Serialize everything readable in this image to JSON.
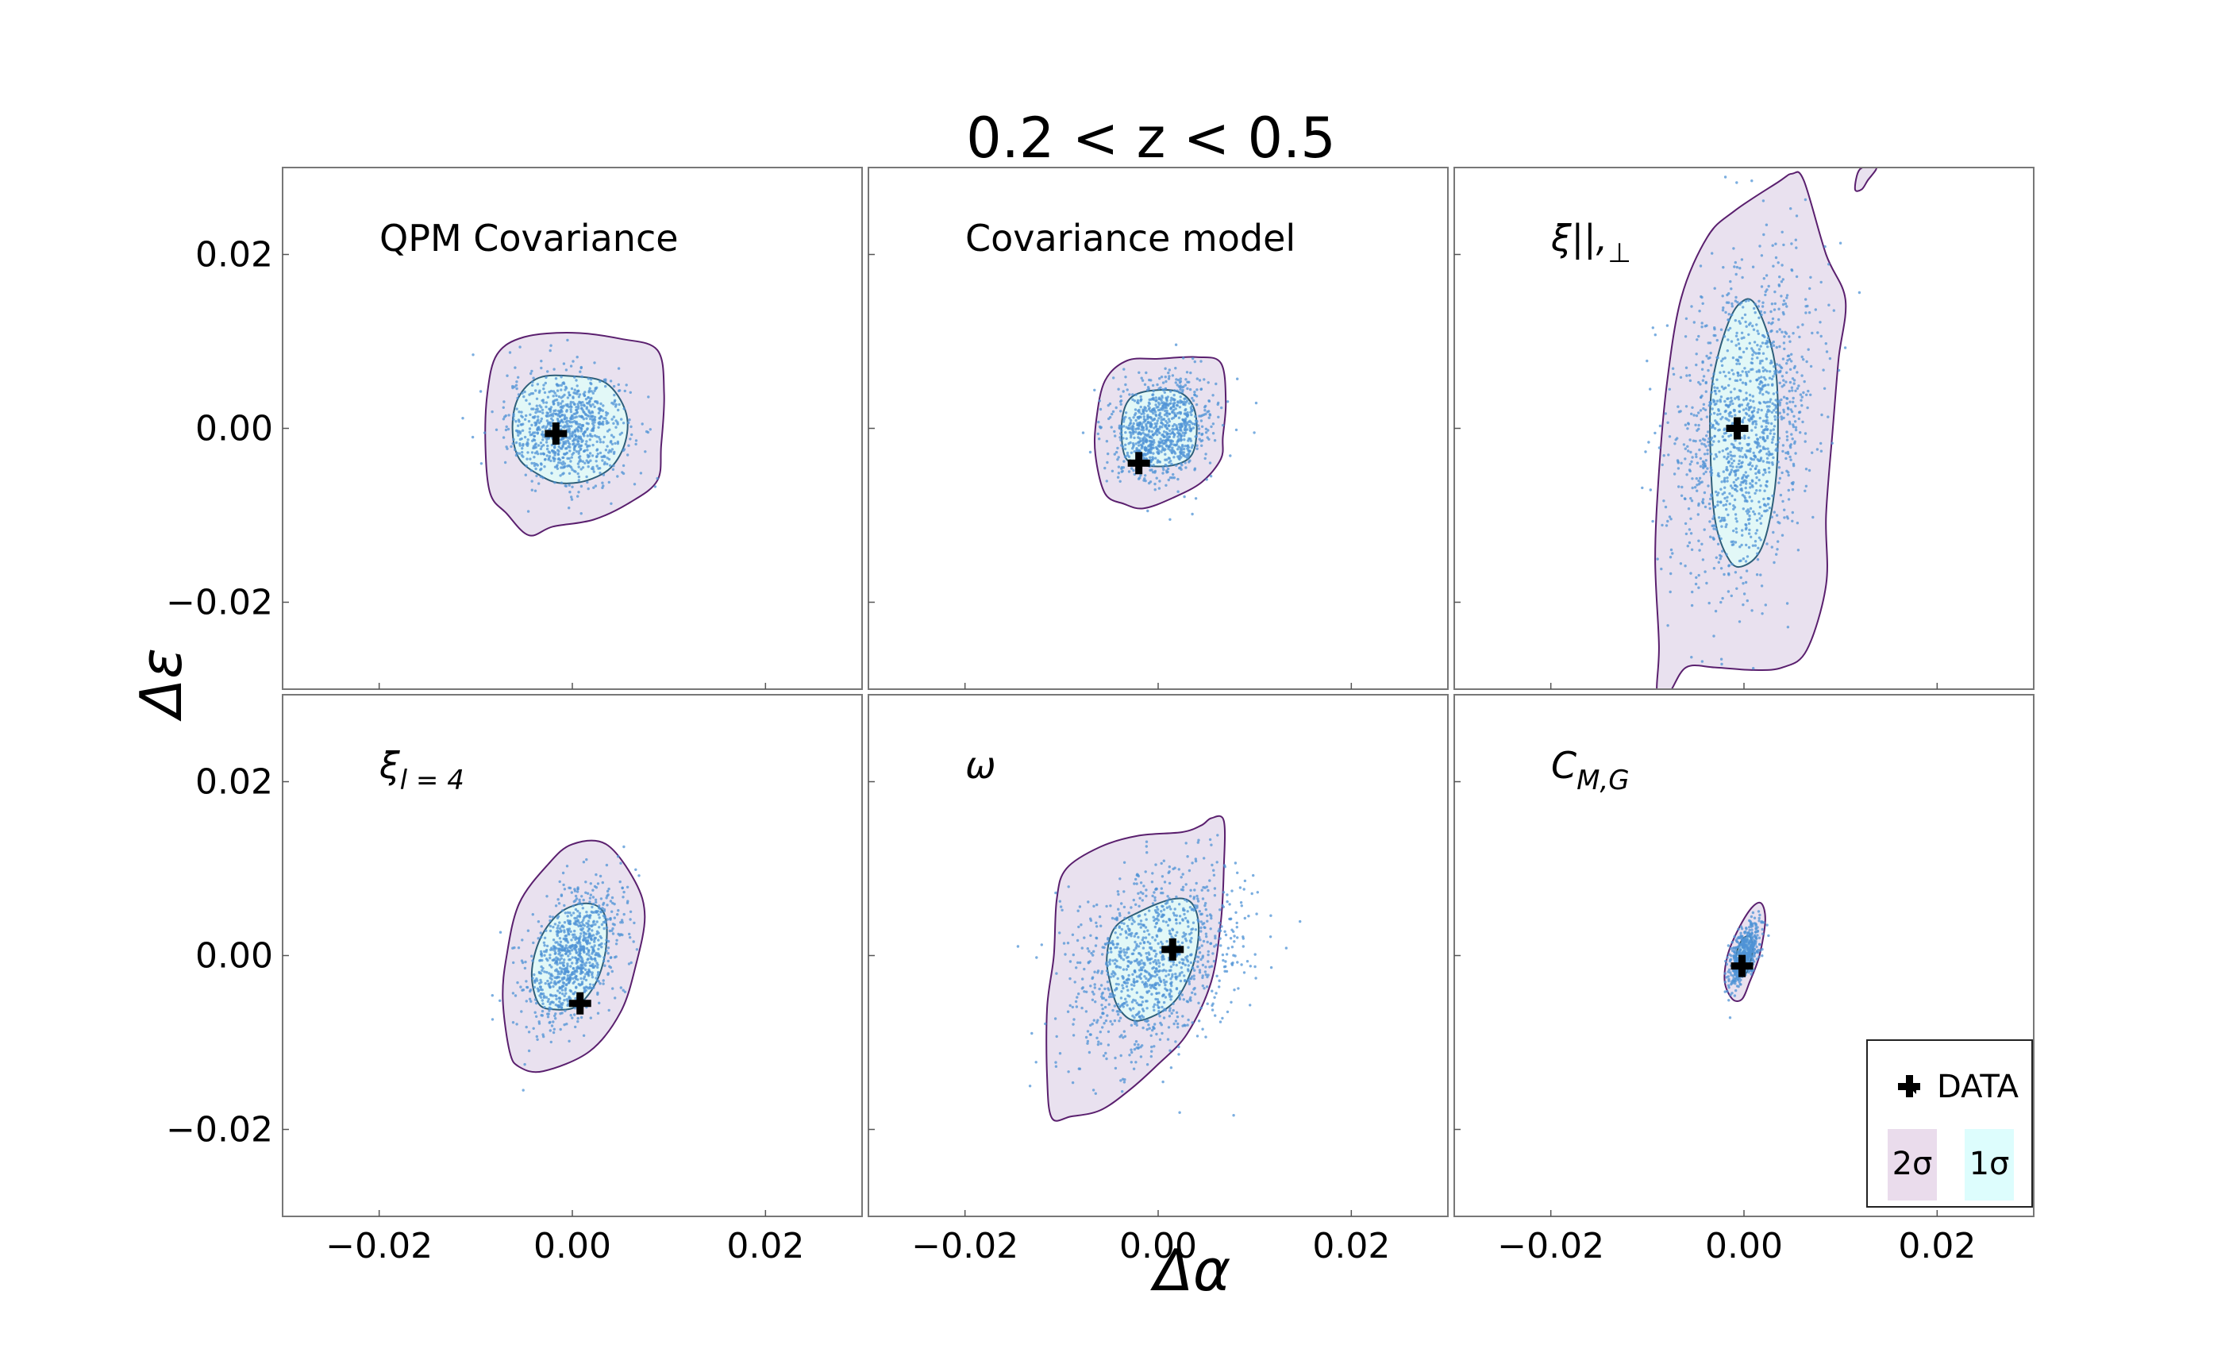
{
  "figure": {
    "title": "0.2 < z < 0.5",
    "xlabel": "Δα",
    "ylabel": "Δε",
    "legend": {
      "position": "bottom-right",
      "data_label": "DATA",
      "two_sigma_label": "2σ",
      "one_sigma_label": "1σ"
    },
    "colors": {
      "two_sigma_fill": "#e9e1ef",
      "two_sigma_line": "#5a1f6e",
      "one_sigma_fill": "#e2f8f7",
      "one_sigma_line": "#2e5f7a",
      "points": "#4f93d6",
      "marker": "#000000",
      "legend_two_sigma": "#eadcec",
      "legend_one_sigma": "#ddfdfd"
    }
  },
  "chart_data": [
    {
      "type": "scatter",
      "title": "QPM Covariance",
      "xlim": [
        -0.03,
        0.03
      ],
      "ylim": [
        -0.03,
        0.03
      ],
      "xticks": [
        -0.02,
        0.0,
        0.02
      ],
      "yticks": [
        -0.02,
        0.0,
        0.02
      ],
      "xtick_labels": [
        "−0.02",
        "0.00",
        "0.02"
      ],
      "ytick_labels": [
        "−0.02",
        "0.00",
        "0.02"
      ],
      "data_point": [
        -0.0017,
        -0.0006
      ],
      "cloud": {
        "center": [
          -0.0005,
          0.0
        ],
        "sigma": [
          0.0031,
          0.0032
        ],
        "rho": 0.0,
        "n": 900
      },
      "contour_2sigma": [
        [
          -0.0085,
          -0.0075
        ],
        [
          -0.009,
          -0.002
        ],
        [
          -0.0088,
          0.004
        ],
        [
          -0.0078,
          0.0085
        ],
        [
          -0.005,
          0.0105
        ],
        [
          0.0,
          0.011
        ],
        [
          0.005,
          0.0103
        ],
        [
          0.0088,
          0.009
        ],
        [
          0.0095,
          0.004
        ],
        [
          0.0092,
          -0.002
        ],
        [
          0.0088,
          -0.006
        ],
        [
          0.006,
          -0.0085
        ],
        [
          0.0022,
          -0.0105
        ],
        [
          -0.002,
          -0.0113
        ],
        [
          -0.0045,
          -0.0123
        ],
        [
          -0.0068,
          -0.0098
        ]
      ],
      "contour_1sigma": [
        [
          -0.0032,
          -0.0055
        ],
        [
          -0.0055,
          -0.0035
        ],
        [
          -0.0062,
          0.0
        ],
        [
          -0.0056,
          0.0035
        ],
        [
          -0.0035,
          0.0058
        ],
        [
          0.0,
          0.006
        ],
        [
          0.0035,
          0.0052
        ],
        [
          0.0055,
          0.002
        ],
        [
          0.0055,
          -0.0015
        ],
        [
          0.004,
          -0.0045
        ],
        [
          0.0015,
          -0.006
        ],
        [
          -0.0012,
          -0.0063
        ]
      ]
    },
    {
      "type": "scatter",
      "title": "Covariance model",
      "xlim": [
        -0.03,
        0.03
      ],
      "ylim": [
        -0.03,
        0.03
      ],
      "xticks": [
        -0.02,
        0.0,
        0.02
      ],
      "yticks": [
        -0.02,
        0.0,
        0.02
      ],
      "xtick_labels": [
        "−0.02",
        "0.00",
        "0.02"
      ],
      "ytick_labels": [
        "−0.02",
        "0.00",
        "0.02"
      ],
      "data_point": [
        -0.002,
        -0.004
      ],
      "cloud": {
        "center": [
          0.0003,
          0.0
        ],
        "sigma": [
          0.0026,
          0.0029
        ],
        "rho": 0.1,
        "n": 900
      },
      "contour_2sigma": [
        [
          -0.0055,
          -0.0075
        ],
        [
          -0.0065,
          -0.003
        ],
        [
          -0.0064,
          0.001
        ],
        [
          -0.0055,
          0.0055
        ],
        [
          -0.0032,
          0.0078
        ],
        [
          0.0,
          0.008
        ],
        [
          0.004,
          0.0082
        ],
        [
          0.0065,
          0.0075
        ],
        [
          0.007,
          0.003
        ],
        [
          0.0067,
          -0.001
        ],
        [
          0.0065,
          -0.0035
        ],
        [
          0.0045,
          -0.0062
        ],
        [
          0.0015,
          -0.008
        ],
        [
          -0.0015,
          -0.0092
        ],
        [
          -0.0035,
          -0.0087
        ]
      ],
      "contour_1sigma": [
        [
          -0.0033,
          -0.0035
        ],
        [
          -0.0038,
          0.0
        ],
        [
          -0.0032,
          0.003
        ],
        [
          -0.0015,
          0.0042
        ],
        [
          0.0018,
          0.0043
        ],
        [
          0.0035,
          0.0028
        ],
        [
          0.004,
          0.0
        ],
        [
          0.0035,
          -0.003
        ],
        [
          0.0017,
          -0.0042
        ],
        [
          -0.0012,
          -0.0043
        ]
      ]
    },
    {
      "type": "scatter",
      "title": "ξ||, ⊥",
      "xlim": [
        -0.03,
        0.03
      ],
      "ylim": [
        -0.03,
        0.03
      ],
      "xticks": [
        -0.02,
        0.0,
        0.02
      ],
      "yticks": [
        -0.02,
        0.0,
        0.02
      ],
      "xtick_labels": [
        "−0.02",
        "0.00",
        "0.02"
      ],
      "ytick_labels": [
        "−0.02",
        "0.00",
        "0.02"
      ],
      "data_point": [
        -0.0007,
        0.0
      ],
      "cloud": {
        "center": [
          0.0,
          0.0
        ],
        "sigma": [
          0.0036,
          0.0092
        ],
        "rho": 0.3,
        "n": 1300
      },
      "contour_2sigma": [
        [
          -0.009,
          -0.0305
        ],
        [
          -0.0088,
          -0.025
        ],
        [
          -0.0092,
          -0.015
        ],
        [
          -0.0088,
          -0.005
        ],
        [
          -0.008,
          0.005
        ],
        [
          -0.0065,
          0.015
        ],
        [
          -0.0038,
          0.022
        ],
        [
          -0.001,
          0.025
        ],
        [
          0.0035,
          0.0283
        ],
        [
          0.005,
          0.0293
        ],
        [
          0.0062,
          0.0285
        ],
        [
          0.0085,
          0.02
        ],
        [
          0.0105,
          0.0148
        ],
        [
          0.0098,
          0.008
        ],
        [
          0.0092,
          0.0
        ],
        [
          0.0085,
          -0.01
        ],
        [
          0.0085,
          -0.018
        ],
        [
          0.0065,
          -0.0255
        ],
        [
          0.004,
          -0.0275
        ],
        [
          0.001,
          -0.0278
        ],
        [
          -0.003,
          -0.0275
        ],
        [
          -0.006,
          -0.0275
        ],
        [
          -0.0078,
          -0.0305
        ]
      ],
      "contour_1sigma": [
        [
          -0.0035,
          -0.0015
        ],
        [
          -0.0033,
          0.005
        ],
        [
          -0.002,
          0.011
        ],
        [
          -0.0005,
          0.0143
        ],
        [
          0.0012,
          0.0142
        ],
        [
          0.0032,
          0.0075
        ],
        [
          0.0035,
          -0.002
        ],
        [
          0.003,
          -0.0085
        ],
        [
          0.0018,
          -0.0138
        ],
        [
          0.0,
          -0.0158
        ],
        [
          -0.0015,
          -0.0152
        ],
        [
          -0.003,
          -0.0105
        ]
      ],
      "extra_contour": [
        [
          0.0115,
          0.0275
        ],
        [
          0.012,
          0.0298
        ],
        [
          0.0137,
          0.03
        ],
        [
          0.0128,
          0.0285
        ],
        [
          0.0122,
          0.0275
        ]
      ]
    },
    {
      "type": "scatter",
      "title": "ξ l = 4",
      "xlim": [
        -0.03,
        0.03
      ],
      "ylim": [
        -0.03,
        0.03
      ],
      "xticks": [
        -0.02,
        0.0,
        0.02
      ],
      "yticks": [
        -0.02,
        0.0,
        0.02
      ],
      "xtick_labels": [
        "−0.02",
        "0.00",
        "0.02"
      ],
      "ytick_labels": [
        "−0.02",
        "0.00",
        "0.02"
      ],
      "data_point": [
        0.0008,
        -0.0055
      ],
      "cloud": {
        "center": [
          0.0,
          0.0
        ],
        "sigma": [
          0.0026,
          0.0042
        ],
        "rho": 0.45,
        "n": 900
      },
      "contour_2sigma": [
        [
          -0.0065,
          -0.011
        ],
        [
          -0.0072,
          -0.005
        ],
        [
          -0.0068,
          0.0
        ],
        [
          -0.0055,
          0.006
        ],
        [
          -0.0025,
          0.0105
        ],
        [
          0.0,
          0.0128
        ],
        [
          0.0035,
          0.0128
        ],
        [
          0.0065,
          0.0085
        ],
        [
          0.0075,
          0.0045
        ],
        [
          0.0066,
          -0.001
        ],
        [
          0.005,
          -0.0065
        ],
        [
          0.0018,
          -0.011
        ],
        [
          -0.003,
          -0.0133
        ],
        [
          -0.0055,
          -0.0128
        ]
      ],
      "contour_1sigma": [
        [
          -0.0035,
          -0.0055
        ],
        [
          -0.0042,
          -0.002
        ],
        [
          -0.0033,
          0.002
        ],
        [
          -0.0012,
          0.005
        ],
        [
          0.0015,
          0.006
        ],
        [
          0.0033,
          0.0048
        ],
        [
          0.0035,
          0.001
        ],
        [
          0.0025,
          -0.003
        ],
        [
          0.0005,
          -0.0058
        ],
        [
          -0.0018,
          -0.0062
        ]
      ]
    },
    {
      "type": "scatter",
      "title": "ω",
      "xlim": [
        -0.03,
        0.03
      ],
      "ylim": [
        -0.03,
        0.03
      ],
      "xticks": [
        -0.02,
        0.0,
        0.02
      ],
      "yticks": [
        -0.02,
        0.0,
        0.02
      ],
      "xtick_labels": [
        "−0.02",
        "0.00",
        "0.02"
      ],
      "ytick_labels": [
        "−0.02",
        "0.00",
        "0.02"
      ],
      "data_point": [
        0.0015,
        0.0007
      ],
      "cloud": {
        "center": [
          -0.0005,
          -0.0005
        ],
        "sigma": [
          0.0045,
          0.0055
        ],
        "rho": 0.35,
        "n": 1100
      },
      "contour_2sigma": [
        [
          -0.011,
          -0.0187
        ],
        [
          -0.0115,
          -0.014
        ],
        [
          -0.0115,
          -0.006
        ],
        [
          -0.0108,
          0.0
        ],
        [
          -0.0105,
          0.0065
        ],
        [
          -0.0095,
          0.01
        ],
        [
          -0.006,
          0.0125
        ],
        [
          -0.002,
          0.0138
        ],
        [
          0.0025,
          0.0142
        ],
        [
          0.0045,
          0.015
        ],
        [
          0.0055,
          0.0158
        ],
        [
          0.0068,
          0.0155
        ],
        [
          0.0068,
          0.01
        ],
        [
          0.0065,
          0.004
        ],
        [
          0.0055,
          -0.003
        ],
        [
          0.003,
          -0.009
        ],
        [
          0.0,
          -0.0125
        ],
        [
          -0.003,
          -0.0155
        ],
        [
          -0.006,
          -0.0178
        ],
        [
          -0.009,
          -0.0185
        ]
      ],
      "contour_1sigma": [
        [
          -0.005,
          -0.003
        ],
        [
          -0.0053,
          0.0
        ],
        [
          -0.0045,
          0.0032
        ],
        [
          -0.002,
          0.005
        ],
        [
          0.0015,
          0.0065
        ],
        [
          0.0035,
          0.006
        ],
        [
          0.0042,
          0.003
        ],
        [
          0.0035,
          -0.0015
        ],
        [
          0.0015,
          -0.0055
        ],
        [
          -0.002,
          -0.0075
        ],
        [
          -0.004,
          -0.0062
        ]
      ]
    },
    {
      "type": "scatter",
      "title": "C M, G",
      "xlim": [
        -0.03,
        0.03
      ],
      "ylim": [
        -0.03,
        0.03
      ],
      "xticks": [
        -0.02,
        0.0,
        0.02
      ],
      "yticks": [
        -0.02,
        0.0,
        0.02
      ],
      "xtick_labels": [
        "−0.02",
        "0.00",
        "0.02"
      ],
      "ytick_labels": [
        "−0.02",
        "0.00",
        "0.02"
      ],
      "data_point": [
        -0.0002,
        -0.0012
      ],
      "cloud": {
        "center": [
          0.0,
          0.0
        ],
        "sigma": [
          0.0008,
          0.0018
        ],
        "rho": 0.55,
        "n": 550
      },
      "contour_2sigma": [
        [
          -0.0012,
          -0.005
        ],
        [
          -0.002,
          -0.003
        ],
        [
          -0.0017,
          0.0
        ],
        [
          -0.0006,
          0.003
        ],
        [
          0.0008,
          0.0055
        ],
        [
          0.0018,
          0.006
        ],
        [
          0.0022,
          0.004
        ],
        [
          0.0016,
          0.0
        ],
        [
          0.0006,
          -0.003
        ],
        [
          -0.0002,
          -0.005
        ]
      ],
      "contour_1sigma": [
        [
          -0.0005,
          -0.002
        ],
        [
          -0.0008,
          0.0
        ],
        [
          -0.0002,
          0.0018
        ],
        [
          0.0006,
          0.0022
        ],
        [
          0.0009,
          0.0008
        ],
        [
          0.0006,
          -0.001
        ],
        [
          0.0001,
          -0.0022
        ]
      ]
    }
  ]
}
